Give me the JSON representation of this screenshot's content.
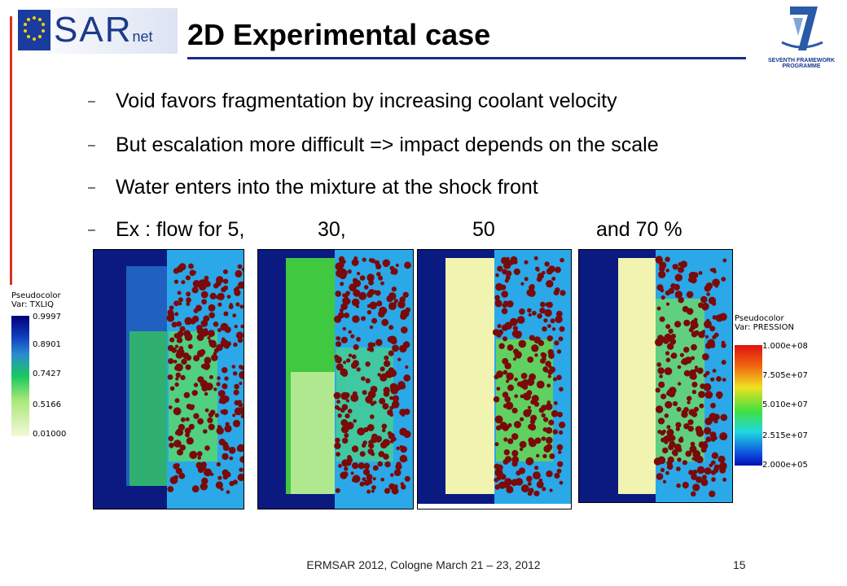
{
  "header": {
    "logo_text_main": "SAR",
    "logo_text_sub": "net",
    "title": "2D Experimental case",
    "fp7_line1": "SEVENTH FRAMEWORK",
    "fp7_line2": "PROGRAMME"
  },
  "bullets": [
    {
      "text": "Void favors fragmentation by increasing coolant velocity"
    },
    {
      "text": "But escalation more difficult => impact depends on the scale"
    },
    {
      "text": "Water enters into the mixture at the shock front"
    }
  ],
  "example": {
    "prefix": "Ex : flow for 5,",
    "v30": "30,",
    "v50": "50",
    "v70": "and 70 %"
  },
  "legend_left": {
    "line1": "Pseudocolor",
    "line2": "Var: TXLIQ",
    "ticks": [
      "0.9997",
      "0.8901",
      "0.7427",
      "0.5166",
      "0.01000"
    ]
  },
  "legend_right": {
    "line1": "Pseudocolor",
    "line2": "Var: PRESSION",
    "ticks": [
      "1.000e+08",
      "7.505e+07",
      "5.010e+07",
      "2.515e+07",
      "2.000e+05"
    ]
  },
  "footer": {
    "text": "ERMSAR 2012, Cologne March 21 – 23, 2012",
    "page": "15"
  },
  "colors": {
    "title_rule": "#1b2a8a",
    "accent_red": "#e03020"
  }
}
